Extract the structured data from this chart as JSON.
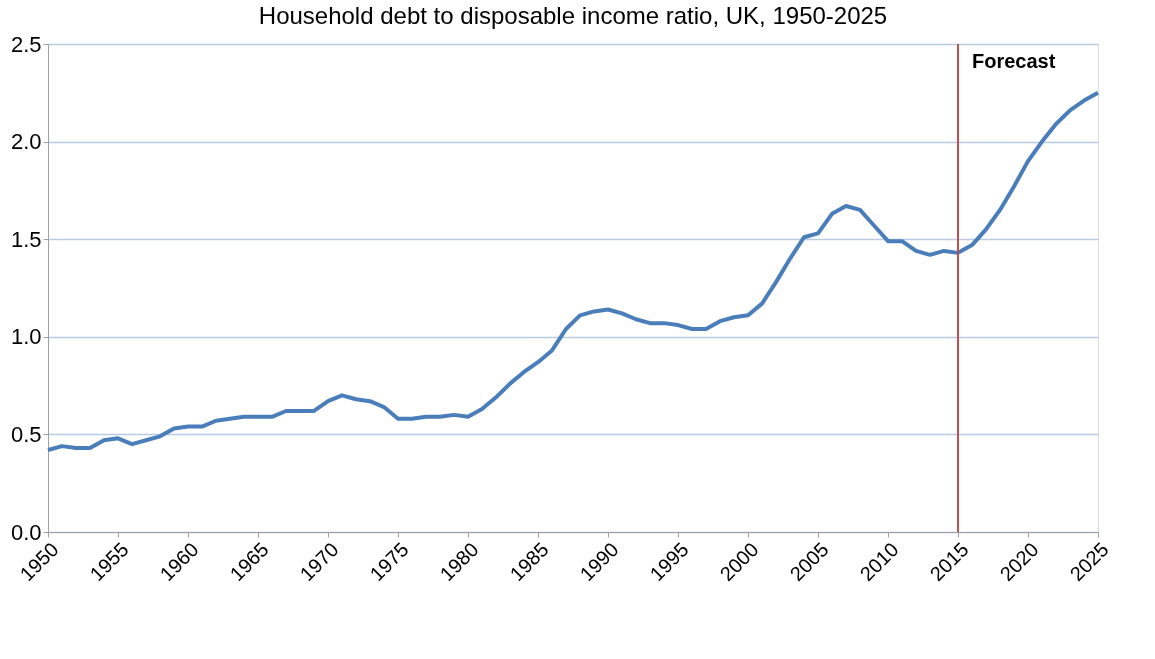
{
  "chart_data": {
    "type": "line",
    "title": "Household debt to disposable income ratio, UK, 1950-2025",
    "x": [
      1950,
      1951,
      1952,
      1953,
      1954,
      1955,
      1956,
      1957,
      1958,
      1959,
      1960,
      1961,
      1962,
      1963,
      1964,
      1965,
      1966,
      1967,
      1968,
      1969,
      1970,
      1971,
      1972,
      1973,
      1974,
      1975,
      1976,
      1977,
      1978,
      1979,
      1980,
      1981,
      1982,
      1983,
      1984,
      1985,
      1986,
      1987,
      1988,
      1989,
      1990,
      1991,
      1992,
      1993,
      1994,
      1995,
      1996,
      1997,
      1998,
      1999,
      2000,
      2001,
      2002,
      2003,
      2004,
      2005,
      2006,
      2007,
      2008,
      2009,
      2010,
      2011,
      2012,
      2013,
      2014,
      2015,
      2016,
      2017,
      2018,
      2019,
      2020,
      2021,
      2022,
      2023,
      2024,
      2025
    ],
    "series": [
      {
        "color": "#4a7ebb",
        "values": [
          0.42,
          0.44,
          0.43,
          0.43,
          0.47,
          0.48,
          0.45,
          0.47,
          0.49,
          0.53,
          0.54,
          0.54,
          0.57,
          0.58,
          0.59,
          0.59,
          0.59,
          0.62,
          0.62,
          0.62,
          0.67,
          0.7,
          0.68,
          0.67,
          0.64,
          0.58,
          0.58,
          0.59,
          0.59,
          0.6,
          0.59,
          0.63,
          0.69,
          0.76,
          0.82,
          0.87,
          0.93,
          1.04,
          1.11,
          1.13,
          1.14,
          1.12,
          1.09,
          1.07,
          1.07,
          1.06,
          1.04,
          1.04,
          1.08,
          1.1,
          1.11,
          1.17,
          1.28,
          1.4,
          1.51,
          1.53,
          1.63,
          1.67,
          1.65,
          1.57,
          1.49,
          1.49,
          1.44,
          1.42,
          1.44,
          1.43,
          1.47,
          1.55,
          1.65,
          1.77,
          1.9,
          2.0,
          2.09,
          2.16,
          2.21,
          2.25
        ]
      }
    ],
    "xlim": [
      1950,
      2025
    ],
    "xticks": [
      1950,
      1955,
      1960,
      1965,
      1970,
      1975,
      1980,
      1985,
      1990,
      1995,
      2000,
      2005,
      2010,
      2015,
      2020,
      2025
    ],
    "ylim": [
      0,
      2.5
    ],
    "yticks": [
      {
        "value": 0,
        "label": "0.0"
      },
      {
        "value": 0.5,
        "label": "0.5"
      },
      {
        "value": 1,
        "label": "1.0"
      },
      {
        "value": 1.5,
        "label": "1.5"
      },
      {
        "value": 2,
        "label": "2.0"
      },
      {
        "value": 2.5,
        "label": "2.5"
      }
    ],
    "ref_lines": [
      {
        "axis": "x",
        "value": 2015,
        "label": "Forecast",
        "color": "#c0504d"
      }
    ],
    "grid": "y",
    "marker": "none",
    "line_style": "solid"
  }
}
